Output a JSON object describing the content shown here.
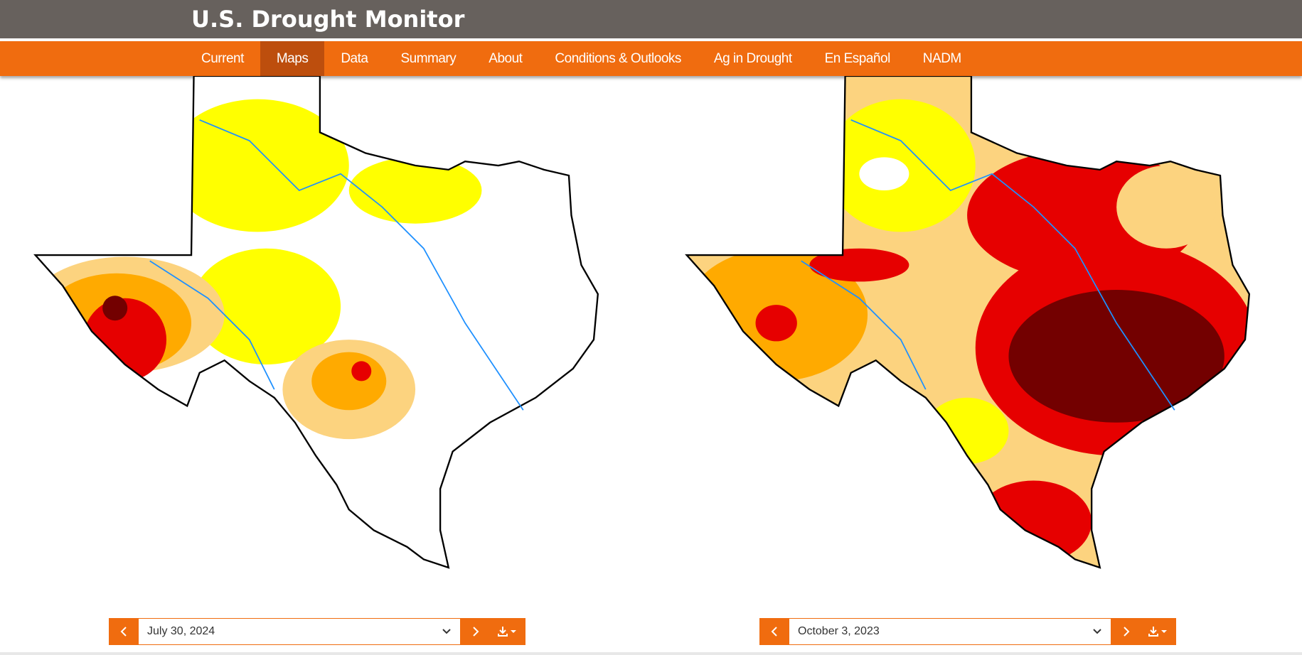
{
  "header": {
    "title": "U.S. Drought Monitor"
  },
  "nav": {
    "items": [
      "Current",
      "Maps",
      "Data",
      "Summary",
      "About",
      "Conditions & Outlooks",
      "Ag in Drought",
      "En Español",
      "NADM"
    ],
    "active_index": 1
  },
  "maps": [
    {
      "date": "July 30, 2024"
    },
    {
      "date": "October 3, 2023"
    }
  ]
}
